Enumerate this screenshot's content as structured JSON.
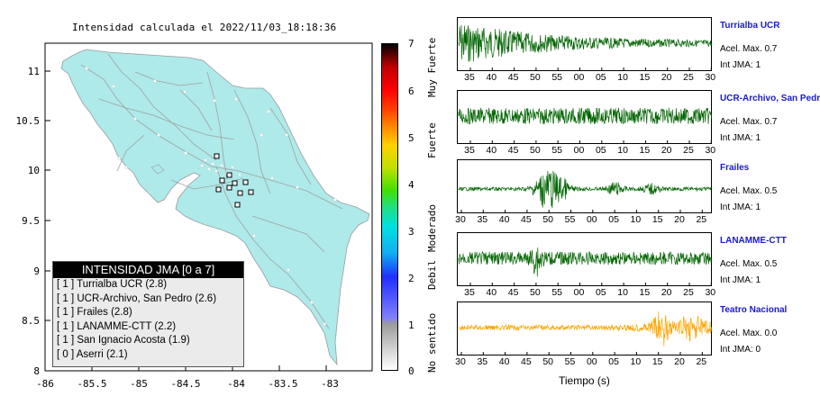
{
  "map": {
    "title": "Intensidad calculada el 2022/11/03_18:18:36",
    "x_ticks": [
      "-86",
      "-85.5",
      "-85",
      "-84.5",
      "-84",
      "-83.5",
      "-83"
    ],
    "y_ticks": [
      "11",
      "10.5",
      "10",
      "9.5",
      "9",
      "8.5",
      "8"
    ]
  },
  "legend": {
    "title": "INTENSIDAD JMA [0 a 7]",
    "items": [
      "[ 1 ]  Turrialba UCR (2.8)",
      "[ 1 ]  UCR-Archivo, San Pedro (2.6)",
      "[ 1 ]  Frailes (2.8)",
      "[ 1 ]  LANAMME-CTT (2.2)",
      "[ 1 ]  San Ignacio Acosta (1.9)",
      "[ 0 ]  Aserri (2.1)"
    ]
  },
  "colorbar": {
    "ticks": [
      "7",
      "6",
      "5",
      "4",
      "3",
      "2",
      "1",
      "0"
    ],
    "labels": [
      "Muy Fuerte",
      "Fuerte",
      "Moderado",
      "Debil",
      "No sentido"
    ]
  },
  "traces": [
    {
      "name": "Turrialba UCR",
      "accel": "Acel. Max. 0.7",
      "int": "Int JMA: 1",
      "color": "#006400",
      "ticks": [
        "35",
        "40",
        "45",
        "50",
        "55",
        "00",
        "05",
        "10",
        "15",
        "20",
        "25",
        "30"
      ]
    },
    {
      "name": "UCR-Archivo, San Pedro",
      "accel": "Acel. Max. 0.7",
      "int": "Int JMA: 1",
      "color": "#006400",
      "ticks": [
        "35",
        "40",
        "45",
        "50",
        "55",
        "00",
        "05",
        "10",
        "15",
        "20",
        "25",
        "30"
      ]
    },
    {
      "name": "Frailes",
      "accel": "Acel. Max. 0.5",
      "int": "Int JMA: 1",
      "color": "#006400",
      "ticks": [
        "30",
        "35",
        "40",
        "45",
        "50",
        "55",
        "00",
        "05",
        "10",
        "15",
        "20",
        "25"
      ]
    },
    {
      "name": "LANAMME-CTT",
      "accel": "Acel. Max. 0.5",
      "int": "Int JMA: 1",
      "color": "#006400",
      "ticks": [
        "35",
        "40",
        "45",
        "50",
        "55",
        "00",
        "05",
        "10",
        "15",
        "20",
        "25",
        "30"
      ]
    },
    {
      "name": "Teatro Nacional",
      "accel": "Acel. Max. 0.0",
      "int": "Int JMA: 0",
      "color": "#ffa500",
      "ticks": [
        "30",
        "35",
        "40",
        "45",
        "50",
        "55",
        "00",
        "05",
        "10",
        "15",
        "20",
        "25"
      ]
    }
  ],
  "time_axis_label": "Tiempo (s)"
}
